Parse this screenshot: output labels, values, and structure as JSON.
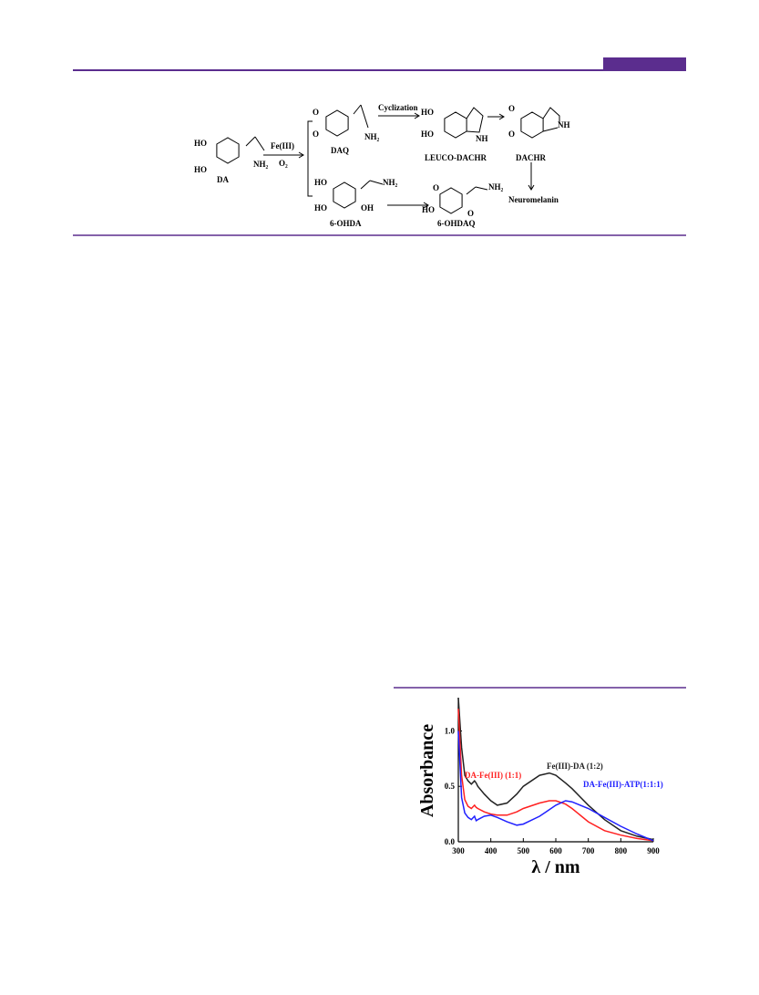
{
  "scheme": {
    "labels": {
      "da_ho1": "HO",
      "da_ho2": "HO",
      "da_nh2": "NH₂",
      "da": "DA",
      "fe": "Fe(III)",
      "o2": "O₂",
      "daq_o1": "O",
      "daq_o2": "O",
      "daq_nh2": "NH₂",
      "daq": "DAQ",
      "cyclization": "Cyclization",
      "leuco_ho1": "HO",
      "leuco_ho2": "HO",
      "leuco_nh": "NH",
      "leuco": "LEUCO-DACHR",
      "dachr_o1": "O",
      "dachr_o2": "O",
      "dachr_nh": "NH",
      "dachr": "DACHR",
      "neuromelanin": "Neuromelanin",
      "ohda_ho1": "HO",
      "ohda_ho2": "HO",
      "ohda_oh": "OH",
      "ohda_nh2": "NH₂",
      "ohda": "6-OHDA",
      "ohdaq_o1": "O",
      "ohdaq_ho": "HO",
      "ohdaq_o2": "O",
      "ohdaq_nh2": "NH₂",
      "ohdaq": "6-OHDAQ"
    }
  },
  "chart_data": {
    "type": "line",
    "x_label": "λ / nm",
    "y_label": "Absorbance",
    "x": [
      300,
      310,
      320,
      330,
      340,
      350,
      355,
      360,
      380,
      400,
      420,
      450,
      480,
      500,
      550,
      580,
      600,
      630,
      650,
      700,
      750,
      800,
      850,
      900
    ],
    "series": [
      {
        "name": "Fe(III)-DA (1:2)",
        "color": "#222222",
        "values": [
          1.3,
          0.85,
          0.6,
          0.55,
          0.52,
          0.55,
          0.53,
          0.5,
          0.43,
          0.37,
          0.33,
          0.35,
          0.43,
          0.5,
          0.6,
          0.62,
          0.6,
          0.53,
          0.48,
          0.33,
          0.2,
          0.1,
          0.05,
          0.02
        ]
      },
      {
        "name": "DA-Fe(III) (1:1)",
        "color": "#ff2020",
        "values": [
          1.2,
          0.6,
          0.38,
          0.32,
          0.3,
          0.33,
          0.31,
          0.3,
          0.27,
          0.25,
          0.24,
          0.24,
          0.27,
          0.3,
          0.35,
          0.37,
          0.37,
          0.34,
          0.3,
          0.18,
          0.1,
          0.06,
          0.03,
          0.01
        ]
      },
      {
        "name": "DA-Fe(III)-ATP(1:1:1)",
        "color": "#2020ff",
        "values": [
          1.0,
          0.4,
          0.26,
          0.22,
          0.2,
          0.23,
          0.19,
          0.2,
          0.23,
          0.24,
          0.22,
          0.18,
          0.15,
          0.16,
          0.23,
          0.29,
          0.33,
          0.37,
          0.36,
          0.3,
          0.22,
          0.14,
          0.07,
          0.01
        ]
      }
    ],
    "xlim": [
      300,
      900
    ],
    "ylim": [
      0,
      1.3
    ],
    "xticks": [
      300,
      400,
      500,
      600,
      700,
      800,
      900
    ],
    "yticks": [
      {
        "value": 0,
        "label": "0.0"
      },
      0.5,
      {
        "value": 1,
        "label": "1.0"
      }
    ]
  }
}
